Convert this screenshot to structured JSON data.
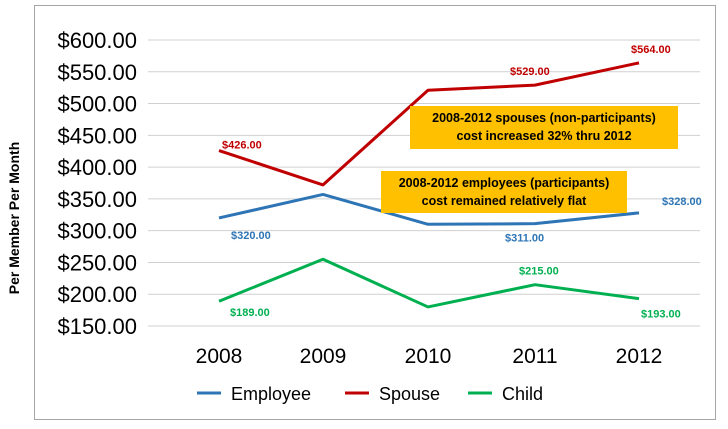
{
  "chart_data": {
    "type": "line",
    "title": "",
    "xlabel": "",
    "ylabel": "Per Member Per Month",
    "categories": [
      "2008",
      "2009",
      "2010",
      "2011",
      "2012"
    ],
    "ylim": [
      150,
      600
    ],
    "yticks": [
      150,
      200,
      250,
      300,
      350,
      400,
      450,
      500,
      550,
      600
    ],
    "ytick_labels": [
      "$150.00",
      "$200.00",
      "$250.00",
      "$300.00",
      "$350.00",
      "$400.00",
      "$450.00",
      "$500.00",
      "$550.00",
      "$600.00"
    ],
    "grid": true,
    "legend_position": "bottom",
    "series": [
      {
        "name": "Employee",
        "color": "#2e75b6",
        "values": [
          320,
          357,
          310,
          311,
          328
        ],
        "data_labels": [
          "$320.00",
          null,
          null,
          "$311.00",
          "$328.00"
        ]
      },
      {
        "name": "Spouse",
        "color": "#c00000",
        "values": [
          426,
          372,
          521,
          529,
          564
        ],
        "data_labels": [
          "$426.00",
          null,
          null,
          "$529.00",
          "$564.00"
        ]
      },
      {
        "name": "Child",
        "color": "#00b050",
        "values": [
          189,
          255,
          180,
          215,
          193
        ],
        "data_labels": [
          "$189.00",
          null,
          null,
          "$215.00",
          "$193.00"
        ]
      }
    ],
    "annotations": [
      {
        "lines": [
          "2008-2012 spouses (non-participants)",
          "cost increased 32% thru 2012"
        ],
        "color": "#ffc000"
      },
      {
        "lines": [
          "2008-2012 employees (participants)",
          "cost remained relatively flat"
        ],
        "color": "#ffc000"
      }
    ]
  }
}
